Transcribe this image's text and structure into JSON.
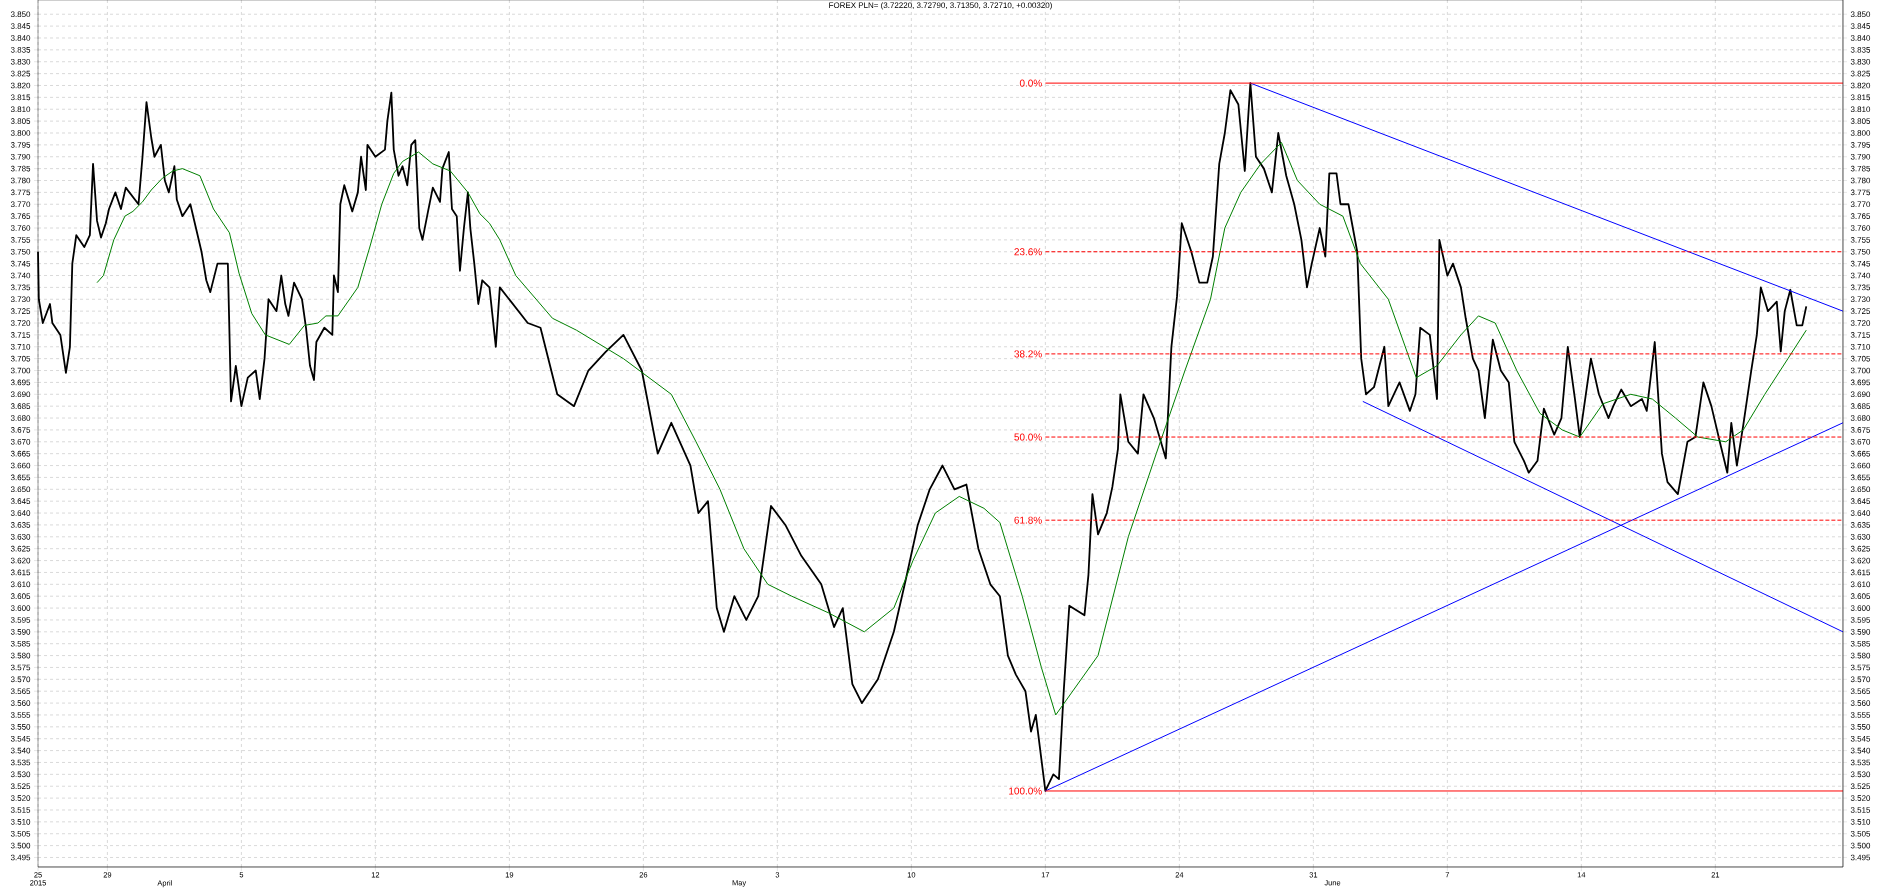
{
  "chart_data": {
    "type": "line",
    "title": "FOREX PLN= (3.72220, 3.72790, 3.71350, 3.72710, +0.00320)",
    "xlim": [
      "2015-03-25T09:00",
      "2015-06-27T16:00"
    ],
    "xticks": [
      {
        "value": "2015-03-25T09:00",
        "label": "25"
      },
      {
        "value": "2015-03-29",
        "label": "29"
      },
      {
        "value": "2015-04-05",
        "label": "5"
      },
      {
        "value": "2015-04-12",
        "label": "12"
      },
      {
        "value": "2015-04-19",
        "label": "19"
      },
      {
        "value": "2015-04-26",
        "label": "26"
      },
      {
        "value": "2015-05-03",
        "label": "3"
      },
      {
        "value": "2015-05-10",
        "label": "10"
      },
      {
        "value": "2015-05-17",
        "label": "17"
      },
      {
        "value": "2015-05-24",
        "label": "24"
      },
      {
        "value": "2015-05-31",
        "label": "31"
      },
      {
        "value": "2015-06-07",
        "label": "7"
      },
      {
        "value": "2015-06-14",
        "label": "14"
      },
      {
        "value": "2015-06-21",
        "label": "21"
      }
    ],
    "x2lim": [
      "2015-03-25T09:00",
      "2015-06-27T16:00"
    ],
    "x2ticks": [
      {
        "value": "2015-03-25T09:00",
        "label": "2015"
      },
      {
        "value": "2015-04-01",
        "label": "April"
      },
      {
        "value": "2015-05-01",
        "label": "May"
      },
      {
        "value": "2015-06-01",
        "label": "June"
      }
    ],
    "ylim": [
      3.491,
      3.856
    ],
    "yticks": [
      3.495,
      {
        "value": 3.5,
        "label": "3.500"
      },
      3.505,
      {
        "value": 3.51,
        "label": "3.510"
      },
      3.515,
      {
        "value": 3.52,
        "label": "3.520"
      },
      3.525,
      {
        "value": 3.53,
        "label": "3.530"
      },
      3.535,
      {
        "value": 3.54,
        "label": "3.540"
      },
      3.545,
      {
        "value": 3.55,
        "label": "3.550"
      },
      3.555,
      {
        "value": 3.56,
        "label": "3.560"
      },
      3.565,
      {
        "value": 3.57,
        "label": "3.570"
      },
      3.575,
      {
        "value": 3.58,
        "label": "3.580"
      },
      3.585,
      {
        "value": 3.59,
        "label": "3.590"
      },
      3.595,
      {
        "value": 3.6,
        "label": "3.600"
      },
      3.605,
      {
        "value": 3.61,
        "label": "3.610"
      },
      3.615,
      {
        "value": 3.62,
        "label": "3.620"
      },
      3.625,
      {
        "value": 3.63,
        "label": "3.630"
      },
      3.635,
      {
        "value": 3.64,
        "label": "3.640"
      },
      3.645,
      {
        "value": 3.65,
        "label": "3.650"
      },
      3.655,
      {
        "value": 3.66,
        "label": "3.660"
      },
      3.665,
      {
        "value": 3.67,
        "label": "3.670"
      },
      3.675,
      {
        "value": 3.68,
        "label": "3.680"
      },
      3.685,
      {
        "value": 3.69,
        "label": "3.690"
      },
      3.695,
      {
        "value": 3.7,
        "label": "3.700"
      },
      3.705,
      {
        "value": 3.71,
        "label": "3.710"
      },
      3.715,
      {
        "value": 3.72,
        "label": "3.720"
      },
      3.725,
      {
        "value": 3.73,
        "label": "3.730"
      },
      3.735,
      {
        "value": 3.74,
        "label": "3.740"
      },
      3.745,
      {
        "value": 3.75,
        "label": "3.750"
      },
      3.755,
      {
        "value": 3.76,
        "label": "3.760"
      },
      3.765,
      {
        "value": 3.77,
        "label": "3.770"
      },
      3.775,
      {
        "value": 3.78,
        "label": "3.780"
      },
      3.785,
      {
        "value": 3.79,
        "label": "3.790"
      },
      3.795,
      {
        "value": 3.8,
        "label": "3.800"
      },
      3.805,
      {
        "value": 3.81,
        "label": "3.810"
      },
      3.815,
      {
        "value": 3.82,
        "label": "3.820"
      },
      3.825,
      {
        "value": 3.83,
        "label": "3.830"
      },
      3.835,
      {
        "value": 3.84,
        "label": "3.840"
      },
      3.845,
      {
        "value": 3.85,
        "label": "3.850"
      }
    ],
    "y2lim": [
      3.491,
      3.856
    ],
    "y2ticks": [
      3.495,
      {
        "value": 3.5,
        "label": "3.500"
      },
      3.505,
      {
        "value": 3.51,
        "label": "3.510"
      },
      3.515,
      {
        "value": 3.52,
        "label": "3.520"
      },
      3.525,
      {
        "value": 3.53,
        "label": "3.530"
      },
      3.535,
      {
        "value": 3.54,
        "label": "3.540"
      },
      3.545,
      {
        "value": 3.55,
        "label": "3.550"
      },
      3.555,
      {
        "value": 3.56,
        "label": "3.560"
      },
      3.565,
      {
        "value": 3.57,
        "label": "3.570"
      },
      3.575,
      {
        "value": 3.58,
        "label": "3.580"
      },
      3.585,
      {
        "value": 3.59,
        "label": "3.590"
      },
      3.595,
      {
        "value": 3.6,
        "label": "3.600"
      },
      3.605,
      {
        "value": 3.61,
        "label": "3.610"
      },
      3.615,
      {
        "value": 3.62,
        "label": "3.620"
      },
      3.625,
      {
        "value": 3.63,
        "label": "3.630"
      },
      3.635,
      {
        "value": 3.64,
        "label": "3.640"
      },
      3.645,
      {
        "value": 3.65,
        "label": "3.650"
      },
      3.655,
      {
        "value": 3.66,
        "label": "3.660"
      },
      3.665,
      {
        "value": 3.67,
        "label": "3.670"
      },
      3.675,
      {
        "value": 3.68,
        "label": "3.680"
      },
      3.685,
      {
        "value": 3.69,
        "label": "3.690"
      },
      3.695,
      {
        "value": 3.7,
        "label": "3.700"
      },
      3.705,
      {
        "value": 3.71,
        "label": "3.710"
      },
      3.715,
      {
        "value": 3.72,
        "label": "3.720"
      },
      3.725,
      {
        "value": 3.73,
        "label": "3.730"
      },
      3.735,
      {
        "value": 3.74,
        "label": "3.740"
      },
      3.745,
      {
        "value": 3.75,
        "label": "3.750"
      },
      3.755,
      {
        "value": 3.76,
        "label": "3.760"
      },
      3.765,
      {
        "value": 3.77,
        "label": "3.770"
      },
      3.775,
      {
        "value": 3.78,
        "label": "3.780"
      },
      3.785,
      {
        "value": 3.79,
        "label": "3.790"
      },
      3.795,
      {
        "value": 3.8,
        "label": "3.800"
      },
      3.805,
      {
        "value": 3.81,
        "label": "3.810"
      },
      3.815,
      {
        "value": 3.82,
        "label": "3.820"
      },
      3.825,
      {
        "value": 3.83,
        "label": "3.830"
      },
      3.835,
      {
        "value": 3.84,
        "label": "3.840"
      },
      3.845,
      {
        "value": 3.85,
        "label": "3.850"
      }
    ],
    "grid": true,
    "series": [
      {
        "color": "#000000",
        "x": [
          "2015-03-25T09:00",
          "2015-03-25T10:00",
          "2015-03-25T15:00",
          "2015-03-26T00:00",
          "2015-03-26T03:00",
          "2015-03-26T13:00",
          "2015-03-26T20:00",
          "2015-03-27T01:00",
          "2015-03-27T04:00",
          "2015-03-27T09:00",
          "2015-03-27T19:00",
          "2015-03-28T02:00",
          "2015-03-28T06:00",
          "2015-03-28T11:00",
          "2015-03-28T16:00",
          "2015-03-28T22:00",
          "2015-03-29T02:00",
          "2015-03-29T10:00",
          "2015-03-29T17:00",
          "2015-03-29T23:00",
          "2015-03-30T15:00",
          "2015-03-30T20:00",
          "2015-03-31T01:00",
          "2015-03-31T07:00",
          "2015-03-31T11:00",
          "2015-03-31T19:00",
          "2015-04-01T00:00",
          "2015-04-01T05:00",
          "2015-04-01T12:00",
          "2015-04-01T15:00",
          "2015-04-01T22:00",
          "2015-04-02T08:00",
          "2015-04-02T15:00",
          "2015-04-02T22:00",
          "2015-04-03T04:00",
          "2015-04-03T09:00",
          "2015-04-03T18:00",
          "2015-04-04T07:00",
          "2015-04-04T11:00",
          "2015-04-04T17:00",
          "2015-04-05T00:00",
          "2015-04-05T08:00",
          "2015-04-05T18:00",
          "2015-04-05T23:00",
          "2015-04-06T05:00",
          "2015-04-06T10:00",
          "2015-04-06T20:00",
          "2015-04-07T02:00",
          "2015-04-07T07:00",
          "2015-04-07T11:00",
          "2015-04-07T18:00",
          "2015-04-08T04:00",
          "2015-04-08T09:00",
          "2015-04-08T14:00",
          "2015-04-08T19:00",
          "2015-04-08T22:00",
          "2015-04-09T08:00",
          "2015-04-09T18:00",
          "2015-04-09T20:00",
          "2015-04-10T01:00",
          "2015-04-10T04:00",
          "2015-04-10T09:00",
          "2015-04-10T19:00",
          "2015-04-11T02:00",
          "2015-04-11T06:00",
          "2015-04-11T12:00",
          "2015-04-11T14:00",
          "2015-04-12T00:00",
          "2015-04-12T12:00",
          "2015-04-12T15:00",
          "2015-04-12T20:00",
          "2015-04-12T23:00",
          "2015-04-13T05:00",
          "2015-04-13T10:00",
          "2015-04-13T16:00",
          "2015-04-13T21:00",
          "2015-04-14T02:00",
          "2015-04-14T07:00",
          "2015-04-14T11:00",
          "2015-04-14T18:00",
          "2015-04-15T00:00",
          "2015-04-15T09:00",
          "2015-04-15T12:00",
          "2015-04-15T20:00",
          "2015-04-16T00:00",
          "2015-04-16T06:00",
          "2015-04-16T10:00",
          "2015-04-16T15:00",
          "2015-04-16T20:00",
          "2015-04-16T23:00",
          "2015-04-17T04:00",
          "2015-04-17T09:00",
          "2015-04-17T14:00",
          "2015-04-17T23:00",
          "2015-04-18T07:00",
          "2015-04-18T12:00",
          "2015-04-19T23:00",
          "2015-04-20T15:00",
          "2015-04-21T12:00",
          "2015-04-22T09:00",
          "2015-04-23T03:00",
          "2015-04-24T01:00",
          "2015-04-24T23:00",
          "2015-04-25T22:00",
          "2015-04-26T18:00",
          "2015-04-27T11:00",
          "2015-04-28T11:00",
          "2015-04-28T21:00",
          "2015-04-29T09:00",
          "2015-04-29T20:00",
          "2015-04-30T05:00",
          "2015-04-30T18:00",
          "2015-05-01T09:00",
          "2015-05-02T00:00",
          "2015-05-02T16:00",
          "2015-05-03T10:00",
          "2015-05-04T06:00",
          "2015-05-05T07:00",
          "2015-05-05T23:00",
          "2015-05-06T10:00",
          "2015-05-06T22:00",
          "2015-05-07T10:00",
          "2015-05-08T06:00",
          "2015-05-09T02:00",
          "2015-05-09T17:00",
          "2015-05-10T08:00",
          "2015-05-10T23:00",
          "2015-05-11T15:00",
          "2015-05-12T06:00",
          "2015-05-12T21:00",
          "2015-05-13T12:00",
          "2015-05-14T03:00",
          "2015-05-14T15:00",
          "2015-05-15T01:00",
          "2015-05-15T11:00",
          "2015-05-15T23:00",
          "2015-05-16T06:00",
          "2015-05-16T12:00",
          "2015-05-17T00:00",
          "2015-05-17T10:00",
          "2015-05-17T17:00",
          "2015-05-17T23:00",
          "2015-05-18T06:00",
          "2015-05-19T01:00",
          "2015-05-19T06:00",
          "2015-05-19T11:00",
          "2015-05-19T18:00",
          "2015-05-20T05:00",
          "2015-05-20T12:00",
          "2015-05-20T19:00",
          "2015-05-20T22:00",
          "2015-05-21T08:00",
          "2015-05-21T20:00",
          "2015-05-22T03:00",
          "2015-05-22T16:00",
          "2015-05-23T07:00",
          "2015-05-23T14:00",
          "2015-05-23T21:00",
          "2015-05-24T03:00",
          "2015-05-24T15:00",
          "2015-05-25T01:00",
          "2015-05-25T11:00",
          "2015-05-25T18:00",
          "2015-05-26T02:00",
          "2015-05-26T09:00",
          "2015-05-26T16:00",
          "2015-05-27T02:00",
          "2015-05-27T10:00",
          "2015-05-27T17:00",
          "2015-05-28T00:00",
          "2015-05-28T10:00",
          "2015-05-28T20:00",
          "2015-05-29T04:00",
          "2015-05-29T14:00",
          "2015-05-30T00:00",
          "2015-05-30T09:00",
          "2015-05-30T16:00",
          "2015-05-30T22:00",
          "2015-05-31T08:00",
          "2015-05-31T15:00",
          "2015-05-31T20:00",
          "2015-06-01T05:00",
          "2015-06-01T10:00",
          "2015-06-01T20:00",
          "2015-06-02T07:00",
          "2015-06-02T12:00",
          "2015-06-02T18:00",
          "2015-06-03T04:00",
          "2015-06-03T17:00",
          "2015-06-03T22:00",
          "2015-06-04T12:00",
          "2015-06-05T01:00",
          "2015-06-05T08:00",
          "2015-06-05T14:00",
          "2015-06-06T02:00",
          "2015-06-06T11:00",
          "2015-06-06T14:00",
          "2015-06-07T00:00",
          "2015-06-07T07:00",
          "2015-06-07T17:00",
          "2015-06-07T23:00",
          "2015-06-08T08:00",
          "2015-06-08T15:00",
          "2015-06-08T23:00",
          "2015-06-09T09:00",
          "2015-06-09T19:00",
          "2015-06-10T05:00",
          "2015-06-10T12:00",
          "2015-06-11T00:00",
          "2015-06-11T06:00",
          "2015-06-11T17:00",
          "2015-06-12T01:00",
          "2015-06-12T14:00",
          "2015-06-12T23:00",
          "2015-06-13T07:00",
          "2015-06-13T16:00",
          "2015-06-13T22:00",
          "2015-06-14T12:00",
          "2015-06-14T22:00",
          "2015-06-15T10:00",
          "2015-06-15T16:00",
          "2015-06-16T02:00",
          "2015-06-16T14:00",
          "2015-06-17T04:00",
          "2015-06-17T10:00",
          "2015-06-17T20:00",
          "2015-06-18T05:00",
          "2015-06-18T12:00",
          "2015-06-19T01:00",
          "2015-06-19T13:00",
          "2015-06-19T23:00",
          "2015-06-20T09:00",
          "2015-06-20T19:00",
          "2015-06-21T07:00",
          "2015-06-21T15:00",
          "2015-06-21T20:00",
          "2015-06-22T03:00",
          "2015-06-22T11:00",
          "2015-06-22T21:00",
          "2015-06-23T04:00",
          "2015-06-23T09:00",
          "2015-06-23T18:00",
          "2015-06-24T05:00",
          "2015-06-24T10:00",
          "2015-06-24T15:00",
          "2015-06-24T22:00",
          "2015-06-25T06:00",
          "2015-06-25T13:00",
          "2015-06-25T18:00"
        ],
        "values": [
          3.75,
          3.73,
          3.72,
          3.728,
          3.72,
          3.715,
          3.699,
          3.71,
          3.745,
          3.757,
          3.752,
          3.757,
          3.787,
          3.763,
          3.756,
          3.762,
          3.768,
          3.775,
          3.768,
          3.777,
          3.77,
          3.79,
          3.813,
          3.798,
          3.79,
          3.795,
          3.78,
          3.775,
          3.786,
          3.772,
          3.765,
          3.77,
          3.76,
          3.75,
          3.738,
          3.733,
          3.745,
          3.745,
          3.687,
          3.702,
          3.685,
          3.697,
          3.7,
          3.688,
          3.705,
          3.73,
          3.725,
          3.74,
          3.728,
          3.723,
          3.737,
          3.73,
          3.718,
          3.702,
          3.696,
          3.712,
          3.718,
          3.715,
          3.74,
          3.733,
          3.77,
          3.778,
          3.767,
          3.775,
          3.79,
          3.776,
          3.795,
          3.79,
          3.793,
          3.805,
          3.817,
          3.793,
          3.782,
          3.786,
          3.778,
          3.795,
          3.797,
          3.76,
          3.755,
          3.767,
          3.777,
          3.771,
          3.785,
          3.792,
          3.768,
          3.765,
          3.742,
          3.76,
          3.775,
          3.76,
          3.745,
          3.728,
          3.738,
          3.735,
          3.71,
          3.735,
          3.72,
          3.718,
          3.69,
          3.685,
          3.7,
          3.708,
          3.715,
          3.7,
          3.665,
          3.678,
          3.66,
          3.64,
          3.645,
          3.6,
          3.59,
          3.605,
          3.595,
          3.605,
          3.643,
          3.635,
          3.622,
          3.61,
          3.592,
          3.6,
          3.568,
          3.56,
          3.57,
          3.59,
          3.612,
          3.635,
          3.65,
          3.66,
          3.65,
          3.652,
          3.625,
          3.61,
          3.605,
          3.58,
          3.572,
          3.565,
          3.548,
          3.555,
          3.523,
          3.53,
          3.528,
          3.565,
          3.601,
          3.597,
          3.614,
          3.648,
          3.631,
          3.64,
          3.651,
          3.667,
          3.69,
          3.67,
          3.665,
          3.69,
          3.68,
          3.663,
          3.71,
          3.731,
          3.762,
          3.75,
          3.737,
          3.737,
          3.748,
          3.787,
          3.8,
          3.818,
          3.812,
          3.784,
          3.821,
          3.79,
          3.785,
          3.775,
          3.8,
          3.782,
          3.77,
          3.755,
          3.735,
          3.745,
          3.76,
          3.748,
          3.783,
          3.783,
          3.77,
          3.77,
          3.75,
          3.705,
          3.69,
          3.693,
          3.71,
          3.685,
          3.695,
          3.683,
          3.69,
          3.718,
          3.715,
          3.688,
          3.755,
          3.74,
          3.745,
          3.735,
          3.722,
          3.705,
          3.7,
          3.68,
          3.713,
          3.7,
          3.695,
          3.67,
          3.662,
          3.657,
          3.662,
          3.684,
          3.673,
          3.68,
          3.71,
          3.688,
          3.672,
          3.705,
          3.69,
          3.68,
          3.685,
          3.692,
          3.685,
          3.688,
          3.683,
          3.712,
          3.665,
          3.653,
          3.648,
          3.67,
          3.672,
          3.695,
          3.685,
          3.668,
          3.657,
          3.678,
          3.66,
          3.677,
          3.7,
          3.715,
          3.735,
          3.725,
          3.729,
          3.708,
          3.725,
          3.734,
          3.719,
          3.719,
          3.727
        ]
      },
      {
        "color": "#008000",
        "x": [
          "2015-03-28T11:00",
          "2015-03-28T19:00",
          "2015-03-29T08:00",
          "2015-03-29T22:00",
          "2015-03-30T08:00",
          "2015-03-30T20:00",
          "2015-03-31T07:00",
          "2015-03-31T21:00",
          "2015-04-01T10:00",
          "2015-04-01T22:00",
          "2015-04-02T20:00",
          "2015-04-03T13:00",
          "2015-04-04T09:00",
          "2015-04-04T21:00",
          "2015-04-05T13:00",
          "2015-04-06T06:00",
          "2015-04-07T12:00",
          "2015-04-08T07:00",
          "2015-04-09T00:00",
          "2015-04-09T10:00",
          "2015-04-10T01:00",
          "2015-04-11T02:00",
          "2015-04-11T17:00",
          "2015-04-12T08:00",
          "2015-04-12T23:00",
          "2015-04-13T10:00",
          "2015-04-14T06:00",
          "2015-04-15T00:00",
          "2015-04-15T22:00",
          "2015-04-16T20:00",
          "2015-04-17T11:00",
          "2015-04-17T23:00",
          "2015-04-18T12:00",
          "2015-04-19T08:00",
          "2015-04-21T06:00",
          "2015-04-22T12:00",
          "2015-04-24T23:00",
          "2015-04-27T11:00",
          "2015-04-28T18:00",
          "2015-04-30T00:00",
          "2015-05-01T06:00",
          "2015-05-02T12:00",
          "2015-05-03T18:00",
          "2015-05-05T16:00",
          "2015-05-07T13:00",
          "2015-05-09T02:00",
          "2015-05-10T02:00",
          "2015-05-11T06:00",
          "2015-05-12T12:00",
          "2015-05-13T19:00",
          "2015-05-14T15:00",
          "2015-05-15T19:00",
          "2015-05-16T19:00",
          "2015-05-17T13:00",
          "2015-05-19T18:00",
          "2015-05-21T08:00",
          "2015-05-22T19:00",
          "2015-05-24T07:00",
          "2015-05-25T15:00",
          "2015-05-26T09:00",
          "2015-05-27T05:00",
          "2015-05-28T06:00",
          "2015-05-29T08:00",
          "2015-05-30T04:00",
          "2015-05-31T08:00",
          "2015-06-01T13:00",
          "2015-06-02T11:00",
          "2015-06-03T22:00",
          "2015-06-05T09:00",
          "2015-06-06T11:00",
          "2015-06-07T17:00",
          "2015-06-08T15:00",
          "2015-06-09T12:00",
          "2015-06-10T15:00",
          "2015-06-11T20:00",
          "2015-06-13T00:00",
          "2015-06-13T22:00",
          "2015-06-15T03:00",
          "2015-06-16T14:00",
          "2015-06-17T17:00",
          "2015-06-18T22:00",
          "2015-06-20T02:00",
          "2015-06-21T13:00",
          "2015-06-22T11:00",
          "2015-06-23T14:00",
          "2015-06-24T19:00",
          "2015-06-25T18:00"
        ],
        "values": [
          3.737,
          3.74,
          3.755,
          3.765,
          3.767,
          3.771,
          3.776,
          3.781,
          3.784,
          3.785,
          3.782,
          3.768,
          3.758,
          3.741,
          3.724,
          3.715,
          3.711,
          3.719,
          3.72,
          3.723,
          3.723,
          3.735,
          3.752,
          3.77,
          3.783,
          3.788,
          3.792,
          3.787,
          3.784,
          3.775,
          3.766,
          3.762,
          3.755,
          3.74,
          3.722,
          3.717,
          3.705,
          3.69,
          3.67,
          3.65,
          3.625,
          3.61,
          3.605,
          3.598,
          3.59,
          3.6,
          3.62,
          3.64,
          3.647,
          3.642,
          3.636,
          3.605,
          3.575,
          3.555,
          3.58,
          3.63,
          3.665,
          3.7,
          3.73,
          3.76,
          3.775,
          3.787,
          3.796,
          3.78,
          3.77,
          3.765,
          3.745,
          3.73,
          3.697,
          3.702,
          3.715,
          3.723,
          3.72,
          3.7,
          3.682,
          3.675,
          3.672,
          3.686,
          3.69,
          3.688,
          3.68,
          3.672,
          3.67,
          3.675,
          3.69,
          3.705,
          3.717
        ]
      },
      {
        "color": "#0000ff",
        "x": [
          "2015-05-27T17:00",
          "2015-06-27T16:00"
        ],
        "values": [
          3.821,
          3.725
        ]
      },
      {
        "color": "#0000ff",
        "x": [
          "2015-06-02T14:00",
          "2015-06-27T16:00"
        ],
        "values": [
          3.687,
          3.59
        ]
      },
      {
        "color": "#0000ff",
        "x": [
          "2015-05-17T00:00",
          "2015-06-27T16:00"
        ],
        "values": [
          3.523,
          3.678
        ]
      },
      {
        "name": "0.0%",
        "color": "#ff0000",
        "line_style": "solid",
        "x": [
          "2015-05-17T00:00",
          "2015-06-27T16:00"
        ],
        "values": [
          3.821,
          3.821
        ]
      },
      {
        "name": "23.6%",
        "color": "#ff0000",
        "line_style": "dashed",
        "x": [
          "2015-05-17T00:00",
          "2015-06-27T16:00"
        ],
        "values": [
          3.75,
          3.75
        ]
      },
      {
        "name": "38.2%",
        "color": "#ff0000",
        "line_style": "dashed",
        "x": [
          "2015-05-17T00:00",
          "2015-06-27T16:00"
        ],
        "values": [
          3.707,
          3.707
        ]
      },
      {
        "name": "50.0%",
        "color": "#ff0000",
        "line_style": "dashed",
        "x": [
          "2015-05-17T00:00",
          "2015-06-27T16:00"
        ],
        "values": [
          3.672,
          3.672
        ]
      },
      {
        "name": "61.8%",
        "color": "#ff0000",
        "line_style": "dashed",
        "x": [
          "2015-05-17T00:00",
          "2015-06-27T16:00"
        ],
        "values": [
          3.637,
          3.637
        ]
      },
      {
        "name": "100.0%",
        "color": "#ff0000",
        "line_style": "solid",
        "x": [
          "2015-05-17T00:00",
          "2015-06-27T16:00"
        ],
        "values": [
          3.523,
          3.523
        ]
      }
    ]
  }
}
